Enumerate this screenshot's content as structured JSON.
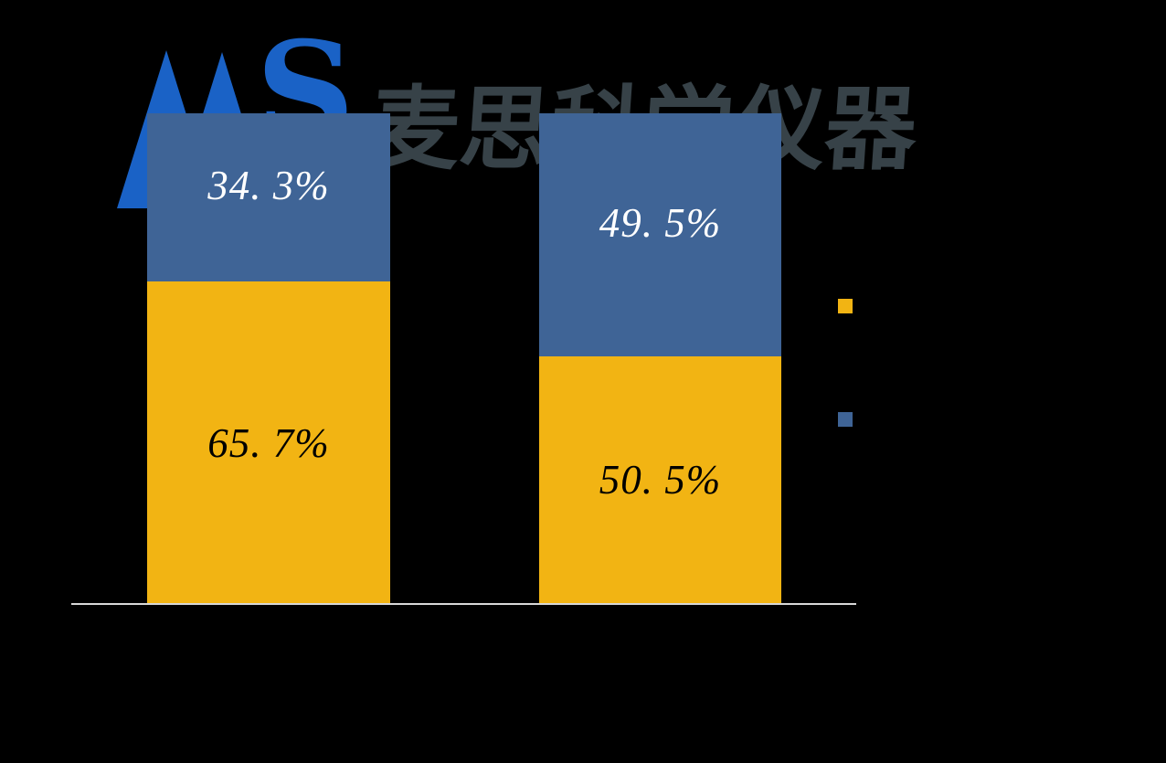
{
  "brand": {
    "logo_s": "S",
    "name_cn": "麦思科学仪器",
    "logo_blue": "#1A62C6",
    "name_color": "#374248"
  },
  "chart_data": {
    "type": "bar",
    "subtype": "stacked-100-percent",
    "orientation": "vertical",
    "title": "",
    "categories": [
      "",
      ""
    ],
    "categories_visible": false,
    "series": [
      {
        "name": "bottom-gold-series",
        "color": "#F2B413",
        "values": [
          65.7,
          50.5
        ]
      },
      {
        "name": "top-blue-series",
        "color": "#3F6496",
        "values": [
          34.3,
          49.5
        ]
      }
    ],
    "data_labels": [
      {
        "bar": 1,
        "segment": "blue",
        "text": "34. 3%",
        "color": "#FFFFFF"
      },
      {
        "bar": 1,
        "segment": "yellow",
        "text": "65. 7%",
        "color": "#000000"
      },
      {
        "bar": 2,
        "segment": "blue",
        "text": "49. 5%",
        "color": "#FFFFFF"
      },
      {
        "bar": 2,
        "segment": "yellow",
        "text": "50. 5%",
        "color": "#000000"
      }
    ],
    "legend": {
      "position": "right",
      "labels_visible": false,
      "swatches": [
        {
          "color": "#F2B413"
        },
        {
          "color": "#3F6496"
        }
      ]
    },
    "axis": {
      "baseline_color": "#D8D8D8"
    },
    "ylim": [
      0,
      100
    ],
    "grid": false,
    "background": "#000000"
  }
}
